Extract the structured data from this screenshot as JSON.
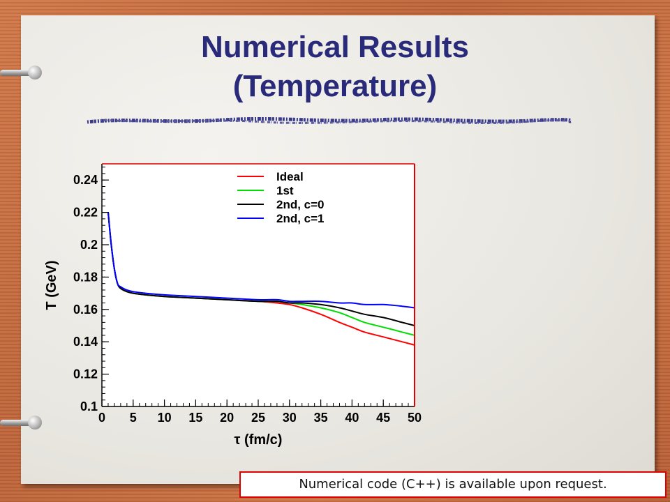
{
  "slide": {
    "title_line1": "Numerical Results",
    "title_line2": "(Temperature)",
    "note": "Numerical code (C++) is available upon request."
  },
  "colors": {
    "title": "#2a2a7a",
    "frame_red": "#e00000"
  },
  "chart_data": {
    "type": "line",
    "title": "",
    "xlabel": "τ (fm/c)",
    "ylabel": "T (GeV)",
    "xlim": [
      0,
      50
    ],
    "ylim": [
      0.1,
      0.25
    ],
    "xticks": [
      "0",
      "5",
      "10",
      "15",
      "20",
      "25",
      "30",
      "35",
      "40",
      "45",
      "50"
    ],
    "yticks": [
      "0.1",
      "0.12",
      "0.14",
      "0.16",
      "0.18",
      "0.2",
      "0.22",
      "0.24"
    ],
    "grid": false,
    "legend_position": "top-center",
    "series": [
      {
        "name": "Ideal",
        "color": "#ff0000",
        "x": [
          1,
          1.5,
          2,
          2.5,
          3,
          4,
          5,
          7,
          10,
          15,
          20,
          25,
          28,
          30,
          32,
          35,
          38,
          40,
          42,
          45,
          48,
          50
        ],
        "y": [
          0.22,
          0.2,
          0.185,
          0.176,
          0.173,
          0.171,
          0.17,
          0.169,
          0.168,
          0.167,
          0.166,
          0.165,
          0.164,
          0.163,
          0.161,
          0.157,
          0.152,
          0.149,
          0.146,
          0.143,
          0.14,
          0.138
        ]
      },
      {
        "name": "1st",
        "color": "#00dd00",
        "x": [
          1,
          1.5,
          2,
          2.5,
          3,
          4,
          5,
          7,
          10,
          15,
          20,
          25,
          28,
          30,
          32,
          35,
          38,
          40,
          42,
          45,
          48,
          50
        ],
        "y": [
          0.22,
          0.2,
          0.185,
          0.176,
          0.173,
          0.171,
          0.17,
          0.169,
          0.168,
          0.167,
          0.166,
          0.165,
          0.165,
          0.164,
          0.163,
          0.161,
          0.158,
          0.155,
          0.152,
          0.149,
          0.146,
          0.144
        ]
      },
      {
        "name": "2nd, c=0",
        "color": "#000000",
        "x": [
          1,
          1.5,
          2,
          2.5,
          3,
          4,
          5,
          7,
          10,
          15,
          20,
          25,
          28,
          30,
          32,
          35,
          38,
          40,
          42,
          45,
          48,
          50
        ],
        "y": [
          0.22,
          0.2,
          0.185,
          0.176,
          0.173,
          0.171,
          0.17,
          0.169,
          0.168,
          0.167,
          0.166,
          0.165,
          0.165,
          0.164,
          0.164,
          0.163,
          0.161,
          0.159,
          0.157,
          0.155,
          0.152,
          0.15
        ]
      },
      {
        "name": "2nd, c=1",
        "color": "#0000ff",
        "x": [
          1,
          1.5,
          2,
          2.5,
          3,
          4,
          5,
          7,
          10,
          15,
          20,
          25,
          28,
          30,
          32,
          35,
          38,
          40,
          42,
          45,
          48,
          50
        ],
        "y": [
          0.22,
          0.2,
          0.185,
          0.176,
          0.174,
          0.172,
          0.171,
          0.17,
          0.169,
          0.168,
          0.167,
          0.166,
          0.166,
          0.165,
          0.165,
          0.165,
          0.164,
          0.164,
          0.163,
          0.163,
          0.162,
          0.161
        ]
      }
    ]
  }
}
